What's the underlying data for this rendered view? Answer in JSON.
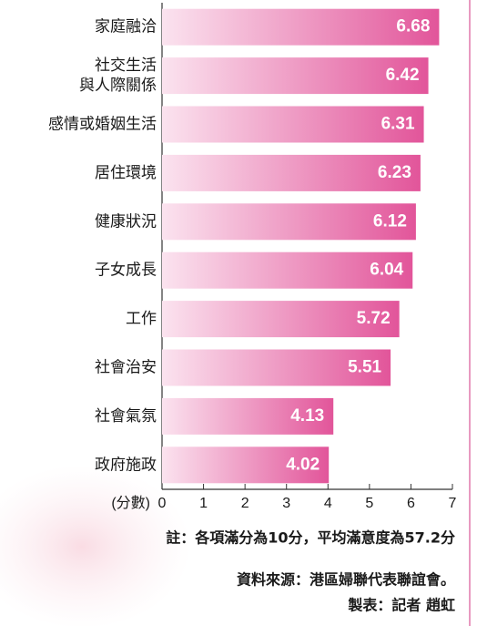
{
  "chart_data": {
    "type": "bar",
    "orientation": "horizontal",
    "categories": [
      "家庭融洽",
      "社交生活\n與人際關係",
      "感情或婚姻生活",
      "居住環境",
      "健康狀況",
      "子女成長",
      "工作",
      "社會治安",
      "社會氣氛",
      "政府施政"
    ],
    "values": [
      6.68,
      6.42,
      6.31,
      6.23,
      6.12,
      6.04,
      5.72,
      5.51,
      4.13,
      4.02
    ],
    "color": "#e2559a",
    "xlim": [
      0,
      7
    ],
    "xticks": [
      0,
      1,
      2,
      3,
      4,
      5,
      6,
      7
    ],
    "x_label": "(分數)",
    "note": "註：各項滿分為10分，平均滿意度為57.2分",
    "source": "資料來源：港區婦聯代表聯誼會。",
    "credit": "製表：記者 趙虹"
  }
}
